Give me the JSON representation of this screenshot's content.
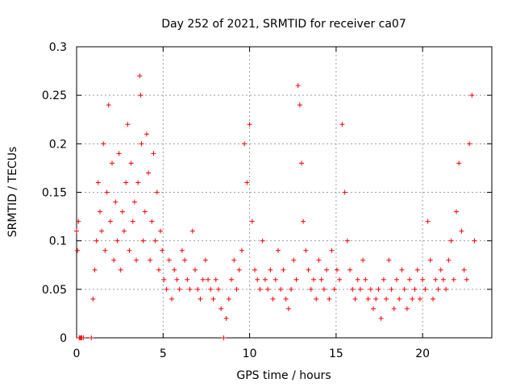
{
  "chart_data": {
    "type": "scatter",
    "title": "Day 252 of 2021, SRMTID for receiver ca07",
    "xlabel": "GPS time / hours",
    "ylabel": "SRMTID / TECUs",
    "xlim": [
      0,
      24
    ],
    "ylim": [
      0,
      0.3
    ],
    "xticks": [
      0,
      5,
      10,
      15,
      20
    ],
    "xtick_labels": [
      "0",
      "5",
      "10",
      "15",
      "20"
    ],
    "yticks": [
      0,
      0.05,
      0.1,
      0.15,
      0.2,
      0.25,
      0.3
    ],
    "ytick_labels": [
      "0",
      "0.05",
      "0.1",
      "0.15",
      "0.2",
      "0.25",
      "0.3"
    ],
    "grid": true,
    "marker": "plus",
    "color": "#ff0000",
    "series": [
      {
        "name": "SRMTID",
        "x": [
          0.0,
          0.05,
          0.1,
          0.15,
          0.2,
          0.25,
          0.3,
          0.4,
          0.85,
          0.95,
          1.05,
          1.15,
          1.25,
          1.35,
          1.45,
          1.55,
          1.65,
          1.75,
          1.85,
          1.95,
          2.05,
          2.15,
          2.25,
          2.35,
          2.45,
          2.55,
          2.65,
          2.75,
          2.85,
          2.95,
          3.05,
          3.15,
          3.25,
          3.35,
          3.45,
          3.55,
          3.65,
          3.7,
          3.75,
          3.85,
          3.95,
          4.05,
          4.15,
          4.25,
          4.35,
          4.45,
          4.55,
          4.65,
          4.75,
          4.85,
          4.95,
          5.05,
          5.2,
          5.35,
          5.5,
          5.65,
          5.8,
          5.95,
          6.1,
          6.25,
          6.4,
          6.55,
          6.7,
          6.85,
          7.0,
          7.15,
          7.3,
          7.45,
          7.6,
          7.75,
          7.9,
          8.05,
          8.2,
          8.35,
          8.5,
          8.65,
          8.8,
          8.95,
          9.1,
          9.25,
          9.4,
          9.55,
          9.7,
          9.85,
          10.0,
          10.15,
          10.3,
          10.45,
          10.6,
          10.75,
          10.9,
          11.05,
          11.2,
          11.35,
          11.5,
          11.65,
          11.8,
          11.95,
          12.1,
          12.25,
          12.4,
          12.55,
          12.7,
          12.8,
          12.9,
          13.0,
          13.1,
          13.25,
          13.4,
          13.55,
          13.7,
          13.85,
          14.0,
          14.15,
          14.3,
          14.45,
          14.6,
          14.75,
          14.9,
          15.05,
          15.2,
          15.35,
          15.5,
          15.65,
          15.8,
          15.95,
          16.1,
          16.25,
          16.4,
          16.55,
          16.7,
          16.85,
          17.0,
          17.15,
          17.3,
          17.45,
          17.6,
          17.75,
          17.9,
          18.05,
          18.2,
          18.35,
          18.5,
          18.65,
          18.8,
          18.95,
          19.1,
          19.25,
          19.4,
          19.55,
          19.7,
          19.85,
          20.0,
          20.15,
          20.3,
          20.45,
          20.6,
          20.75,
          20.9,
          21.05,
          21.2,
          21.35,
          21.5,
          21.65,
          21.8,
          21.95,
          22.1,
          22.25,
          22.4,
          22.55,
          22.7,
          22.85,
          23.0
        ],
        "y": [
          0.11,
          0.09,
          0.12,
          0.0,
          0.0,
          0.0,
          0.0,
          0.0,
          0.0,
          0.04,
          0.07,
          0.1,
          0.16,
          0.13,
          0.11,
          0.2,
          0.09,
          0.15,
          0.24,
          0.12,
          0.18,
          0.08,
          0.14,
          0.1,
          0.19,
          0.07,
          0.13,
          0.11,
          0.16,
          0.22,
          0.09,
          0.18,
          0.12,
          0.14,
          0.08,
          0.16,
          0.27,
          0.25,
          0.2,
          0.1,
          0.13,
          0.21,
          0.17,
          0.08,
          0.12,
          0.19,
          0.1,
          0.15,
          0.07,
          0.11,
          0.09,
          0.06,
          0.05,
          0.08,
          0.04,
          0.07,
          0.06,
          0.05,
          0.09,
          0.08,
          0.06,
          0.05,
          0.11,
          0.07,
          0.05,
          0.04,
          0.06,
          0.08,
          0.06,
          0.05,
          0.04,
          0.06,
          0.05,
          0.03,
          0.0,
          0.02,
          0.04,
          0.06,
          0.08,
          0.05,
          0.07,
          0.09,
          0.2,
          0.16,
          0.22,
          0.12,
          0.07,
          0.06,
          0.05,
          0.1,
          0.06,
          0.05,
          0.07,
          0.04,
          0.06,
          0.09,
          0.05,
          0.07,
          0.04,
          0.03,
          0.05,
          0.08,
          0.06,
          0.26,
          0.24,
          0.18,
          0.12,
          0.09,
          0.07,
          0.05,
          0.06,
          0.04,
          0.08,
          0.06,
          0.05,
          0.07,
          0.04,
          0.09,
          0.05,
          0.07,
          0.06,
          0.22,
          0.15,
          0.1,
          0.07,
          0.05,
          0.04,
          0.06,
          0.05,
          0.08,
          0.06,
          0.04,
          0.05,
          0.03,
          0.04,
          0.05,
          0.02,
          0.06,
          0.04,
          0.08,
          0.05,
          0.03,
          0.06,
          0.04,
          0.07,
          0.05,
          0.03,
          0.06,
          0.04,
          0.05,
          0.07,
          0.04,
          0.06,
          0.05,
          0.12,
          0.08,
          0.04,
          0.06,
          0.05,
          0.07,
          0.06,
          0.05,
          0.08,
          0.1,
          0.06,
          0.13,
          0.18,
          0.11,
          0.07,
          0.06,
          0.2,
          0.25,
          0.1
        ]
      }
    ]
  }
}
